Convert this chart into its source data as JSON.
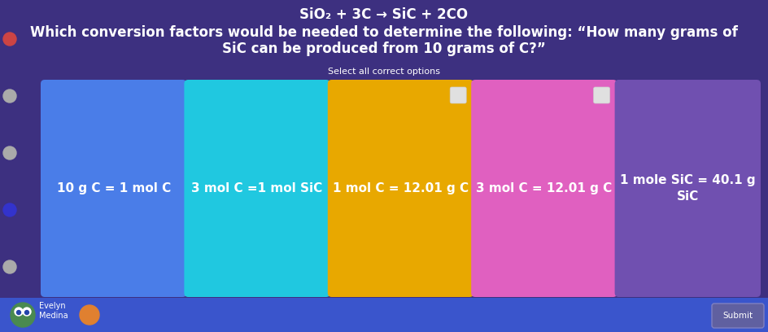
{
  "title_line1": "SiO₂ + 3C → SiC + 2CO",
  "title_line2": "Which conversion factors would be needed to determine the following: “How many grams of",
  "title_line3": "SiC can be produced from 10 grams of C?”",
  "subtitle": "Select all correct options",
  "background_color": "#3d3080",
  "bottom_bar_color": "#3a55cc",
  "cards": [
    {
      "label": "10 g C = 1 mol C",
      "color": "#4a7de8",
      "text_color": "#ffffff",
      "selected": false
    },
    {
      "label": "3 mol C =1 mol SiC",
      "color": "#20c8e0",
      "text_color": "#ffffff",
      "selected": false
    },
    {
      "label": "1 mol C = 12.01 g C",
      "color": "#e8a800",
      "text_color": "#ffffff",
      "selected": true
    },
    {
      "label": "3 mol C = 12.01 g C",
      "color": "#e060c0",
      "text_color": "#ffffff",
      "selected": true
    },
    {
      "label": "1 mole SiC = 40.1 g\nSiC",
      "color": "#7050b0",
      "text_color": "#ffffff",
      "selected": false
    }
  ],
  "bottom_left_name": "Evelyn\nMedina",
  "submit_button": "Submit",
  "title_fontsize": 12,
  "subtitle_fontsize": 8,
  "card_fontsize": 11
}
